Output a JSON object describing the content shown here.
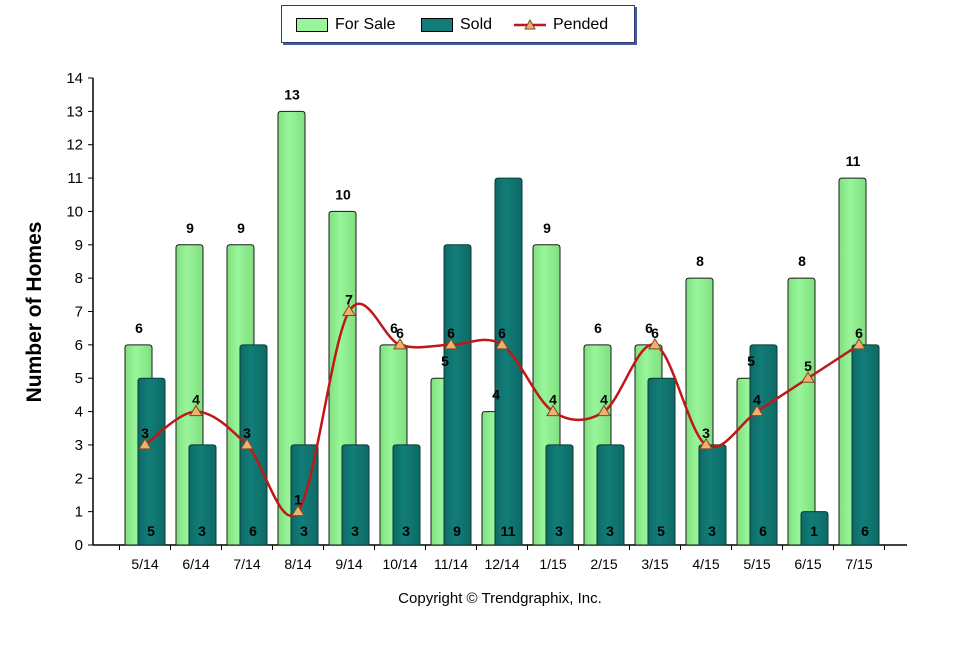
{
  "chart_data": {
    "type": "bar",
    "title": "",
    "xlabel": "",
    "ylabel": "Number of Homes",
    "ylim": [
      0,
      14
    ],
    "yticks": [
      0,
      1,
      2,
      3,
      4,
      5,
      6,
      7,
      8,
      9,
      10,
      11,
      12,
      13,
      14
    ],
    "categories": [
      "5/14",
      "6/14",
      "7/14",
      "8/14",
      "9/14",
      "10/14",
      "11/14",
      "12/14",
      "1/15",
      "2/15",
      "3/15",
      "4/15",
      "5/15",
      "6/15",
      "7/15"
    ],
    "series": [
      {
        "name": "For Sale",
        "kind": "bar",
        "color": "#99f59a",
        "values": [
          6,
          9,
          9,
          13,
          10,
          6,
          5,
          4,
          9,
          6,
          6,
          8,
          5,
          8,
          11
        ]
      },
      {
        "name": "Sold",
        "kind": "bar",
        "color": "#127d78",
        "values": [
          5,
          3,
          6,
          3,
          3,
          3,
          9,
          11,
          3,
          3,
          5,
          3,
          6,
          1,
          6
        ]
      },
      {
        "name": "Pended",
        "kind": "line",
        "color": "#c01818",
        "marker": "triangle",
        "marker_color": "#f2b070",
        "values": [
          3,
          4,
          3,
          1,
          7,
          6,
          6,
          6,
          4,
          4,
          6,
          3,
          4,
          5,
          6
        ]
      }
    ],
    "legend_position": "top",
    "grid": false
  },
  "footer": {
    "copyright": "Copyright © Trendgraphix, Inc."
  }
}
